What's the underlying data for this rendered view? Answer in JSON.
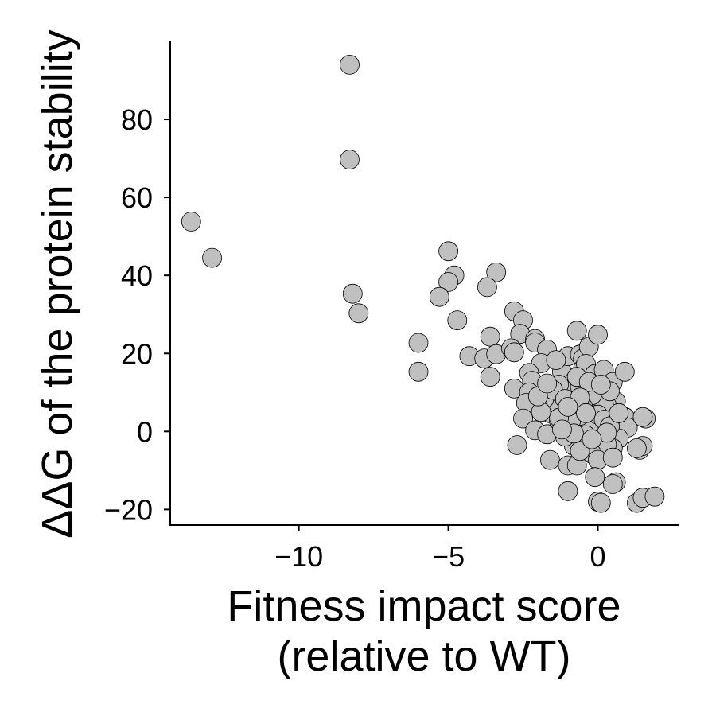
{
  "chart_data": {
    "type": "scatter",
    "title": "",
    "xlabel": [
      "Fitness impact score",
      "(relative to WT)"
    ],
    "ylabel": "ΔΔG of the protein stability",
    "xlim": [
      -14.3,
      2.7
    ],
    "ylim": [
      -24,
      100
    ],
    "xticks": [
      -10,
      -5,
      0
    ],
    "xtick_labels": [
      "−10",
      "−5",
      "0"
    ],
    "yticks": [
      -20,
      0,
      20,
      40,
      60,
      80
    ],
    "ytick_labels": [
      "−20",
      "0",
      "20",
      "40",
      "60",
      "80"
    ],
    "grid": false,
    "legend": "none",
    "marker_color": "#c0c0c0",
    "marker_edge": "#000000",
    "series": [
      {
        "points": [
          [
            -8.3,
            94
          ],
          [
            -8.3,
            69.7
          ],
          [
            -13.6,
            53.8
          ],
          [
            -12.9,
            44.5
          ],
          [
            -8.2,
            35.3
          ],
          [
            -8.0,
            30.3
          ],
          [
            -5.0,
            46.2
          ],
          [
            -4.8,
            40.0
          ],
          [
            -5.0,
            38.3
          ],
          [
            -3.4,
            40.8
          ],
          [
            -3.7,
            37.0
          ],
          [
            -5.3,
            34.5
          ],
          [
            -4.7,
            28.5
          ],
          [
            -6.0,
            22.7
          ],
          [
            -6.0,
            15.3
          ],
          [
            -4.3,
            19.3
          ],
          [
            -3.8,
            18.7
          ],
          [
            -3.6,
            24.3
          ],
          [
            -3.4,
            19.8
          ],
          [
            -3.6,
            14.0
          ],
          [
            -2.8,
            30.8
          ],
          [
            -2.5,
            28.5
          ],
          [
            -2.6,
            25.0
          ],
          [
            -2.9,
            21.3
          ],
          [
            -2.8,
            20.3
          ],
          [
            -2.1,
            23.7
          ],
          [
            -2.1,
            22.8
          ],
          [
            -1.7,
            21.0
          ],
          [
            -1.9,
            17.5
          ],
          [
            -2.3,
            15.0
          ],
          [
            -2.2,
            13.0
          ],
          [
            -2.8,
            11.0
          ],
          [
            -2.3,
            10.0
          ],
          [
            -2.4,
            7.3
          ],
          [
            -2.5,
            3.3
          ],
          [
            -2.7,
            -3.5
          ],
          [
            -2.1,
            0.3
          ],
          [
            -1.7,
            -0.7
          ],
          [
            -1.7,
            7.7
          ],
          [
            -1.6,
            4.7
          ],
          [
            -1.3,
            2.7
          ],
          [
            -1.2,
            15.3
          ],
          [
            -1.0,
            19.3
          ],
          [
            -1.6,
            -7.3
          ],
          [
            -1.0,
            -8.7
          ],
          [
            -1.0,
            -15.3
          ],
          [
            -0.8,
            5.0
          ],
          [
            -0.8,
            10.3
          ],
          [
            -0.7,
            25.8
          ],
          [
            -0.6,
            19.7
          ],
          [
            -0.5,
            18.7
          ],
          [
            -0.4,
            10.7
          ],
          [
            -0.5,
            16.0
          ],
          [
            -0.4,
            14.3
          ],
          [
            -0.3,
            21.7
          ],
          [
            -0.4,
            17.3
          ],
          [
            -0.2,
            8.0
          ],
          [
            -0.1,
            14.7
          ],
          [
            0.0,
            24.8
          ],
          [
            0.2,
            15.8
          ],
          [
            0.5,
            12.7
          ],
          [
            0.9,
            15.3
          ],
          [
            0.6,
            7.7
          ],
          [
            0.3,
            6.7
          ],
          [
            0.1,
            2.7
          ],
          [
            0.5,
            2.0
          ],
          [
            0.9,
            3.7
          ],
          [
            0.8,
            0.3
          ],
          [
            1.0,
            1.0
          ],
          [
            0.7,
            -1.8
          ],
          [
            0.5,
            -4.3
          ],
          [
            0.3,
            -3.3
          ],
          [
            -0.3,
            -2.5
          ],
          [
            -0.8,
            -3.7
          ],
          [
            -0.7,
            -8.7
          ],
          [
            -0.2,
            -5.7
          ],
          [
            0.0,
            -7.3
          ],
          [
            -0.1,
            -11.7
          ],
          [
            0.5,
            -6.7
          ],
          [
            0.6,
            -13.0
          ],
          [
            0.5,
            -13.5
          ],
          [
            0.0,
            -18.0
          ],
          [
            0.1,
            -18.3
          ],
          [
            1.3,
            -18.3
          ],
          [
            1.5,
            -17.0
          ],
          [
            1.9,
            -16.7
          ],
          [
            1.6,
            3.3
          ],
          [
            1.5,
            3.7
          ],
          [
            1.4,
            -4.7
          ],
          [
            1.5,
            -3.7
          ],
          [
            1.3,
            -4.3
          ],
          [
            -0.1,
            7.7
          ],
          [
            0.2,
            7.0
          ],
          [
            -0.3,
            1.0
          ],
          [
            -0.6,
            4.0
          ],
          [
            -0.9,
            2.7
          ],
          [
            -1.1,
            -1.3
          ],
          [
            -1.4,
            5.5
          ],
          [
            -1.8,
            8.3
          ],
          [
            -0.4,
            -1.0
          ],
          [
            0.0,
            4.3
          ],
          [
            -0.2,
            9.3
          ],
          [
            0.4,
            10.3
          ],
          [
            -0.9,
            12.3
          ],
          [
            -0.6,
            11.5
          ],
          [
            -1.3,
            12.0
          ],
          [
            -1.5,
            10.7
          ],
          [
            -1.1,
            8.3
          ],
          [
            -0.5,
            6.3
          ],
          [
            0.2,
            3.0
          ],
          [
            -0.6,
            -5.0
          ],
          [
            -1.3,
            3.5
          ],
          [
            -1.9,
            5.0
          ],
          [
            -2.0,
            9.0
          ],
          [
            -1.7,
            12.3
          ],
          [
            -1.4,
            18.3
          ],
          [
            -0.7,
            14.0
          ],
          [
            -0.3,
            12.7
          ],
          [
            0.1,
            12.0
          ],
          [
            0.4,
            1.3
          ],
          [
            -0.8,
            -0.5
          ],
          [
            -1.2,
            0.5
          ],
          [
            -0.6,
            8.7
          ],
          [
            0.7,
            4.7
          ],
          [
            0.3,
            -0.3
          ],
          [
            -0.2,
            -2.0
          ],
          [
            -0.4,
            4.7
          ],
          [
            -1.0,
            6.3
          ]
        ]
      }
    ]
  }
}
